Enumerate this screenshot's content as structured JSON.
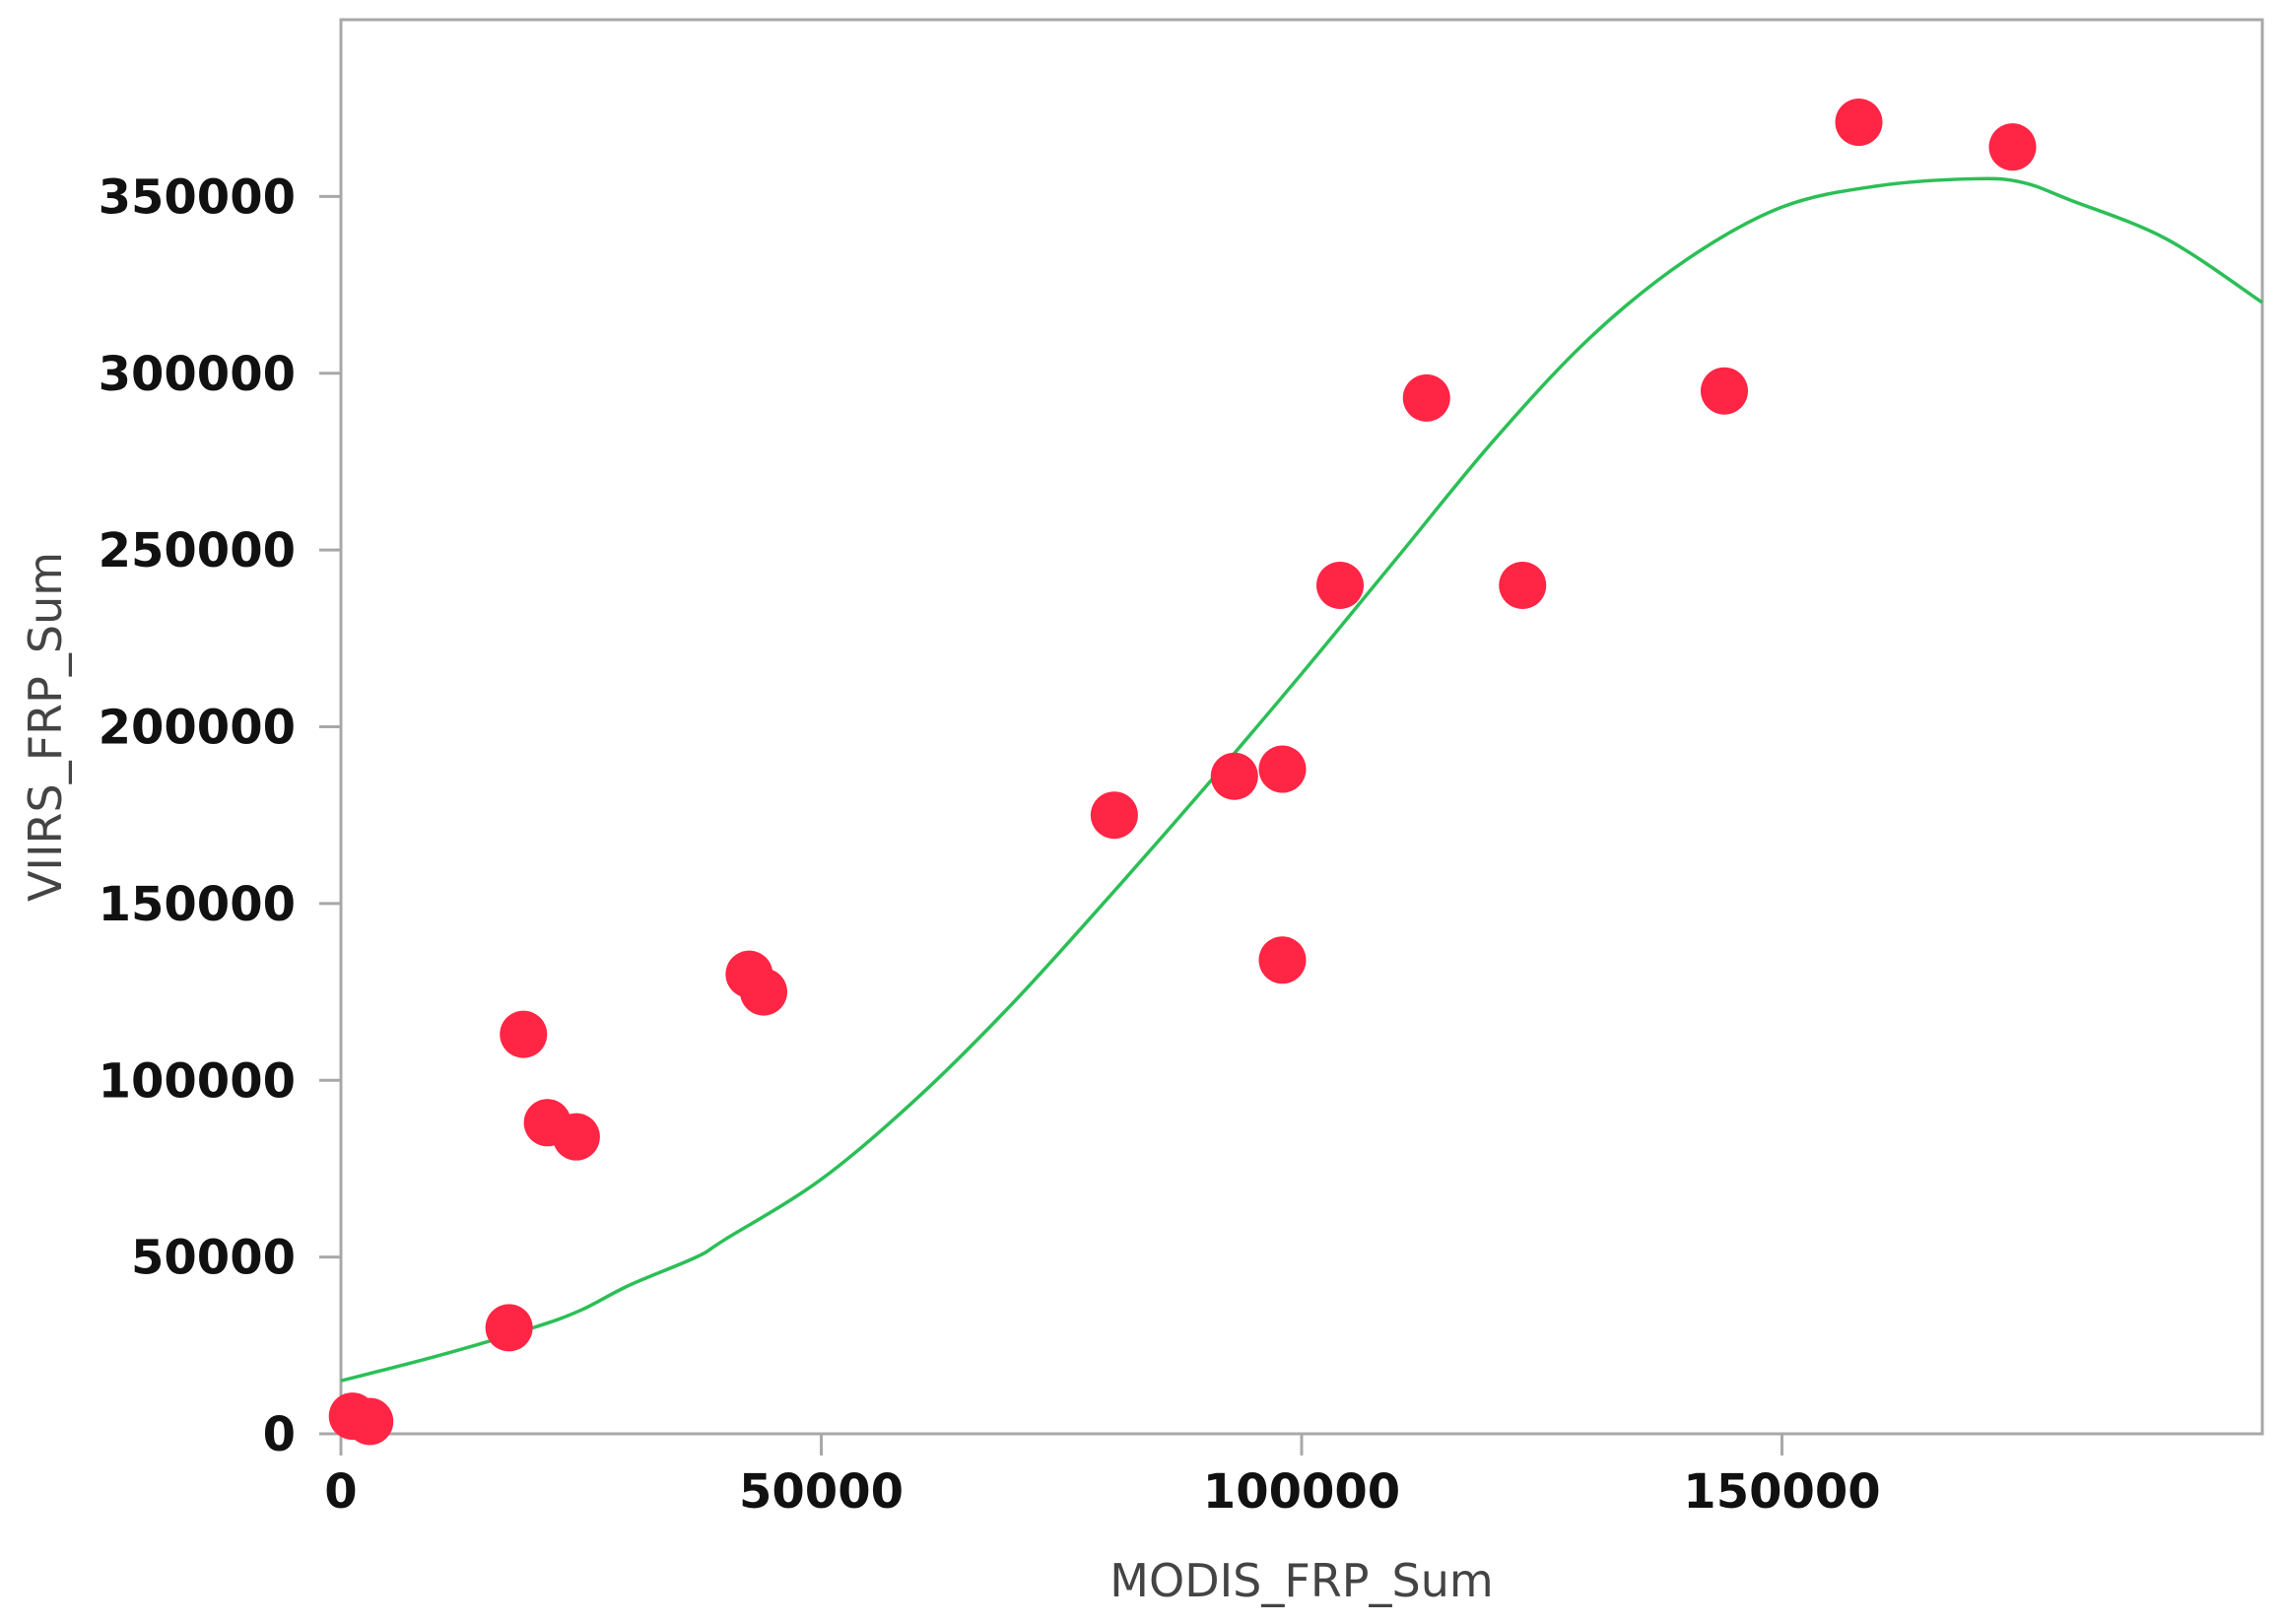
{
  "chart_data": {
    "type": "scatter",
    "xlabel": "MODIS_FRP_Sum",
    "ylabel": "VIIRS_FRP_Sum",
    "xlim": [
      0,
      200000
    ],
    "ylim": [
      0,
      400000
    ],
    "x_ticks": [
      0,
      50000,
      100000,
      150000
    ],
    "x_tick_labels": [
      "0",
      "50000",
      "100000",
      "150000"
    ],
    "y_ticks": [
      0,
      50000,
      100000,
      150000,
      200000,
      250000,
      300000,
      350000
    ],
    "y_tick_labels": [
      "0",
      "50000",
      "100000",
      "150000",
      "200000",
      "250000",
      "300000",
      "350000"
    ],
    "grid": false,
    "points": [
      {
        "x": 1200,
        "y": 5000
      },
      {
        "x": 3000,
        "y": 3500
      },
      {
        "x": 17500,
        "y": 30000
      },
      {
        "x": 19000,
        "y": 113000
      },
      {
        "x": 21500,
        "y": 88000
      },
      {
        "x": 24500,
        "y": 84000
      },
      {
        "x": 42500,
        "y": 130000
      },
      {
        "x": 44000,
        "y": 125000
      },
      {
        "x": 80500,
        "y": 175000
      },
      {
        "x": 93000,
        "y": 186000
      },
      {
        "x": 98000,
        "y": 188000
      },
      {
        "x": 98000,
        "y": 134000
      },
      {
        "x": 104000,
        "y": 240000
      },
      {
        "x": 113000,
        "y": 293000
      },
      {
        "x": 123000,
        "y": 240000
      },
      {
        "x": 144000,
        "y": 295000
      },
      {
        "x": 158000,
        "y": 371000
      },
      {
        "x": 174000,
        "y": 364000
      }
    ],
    "fit_curve": {
      "x": [
        0,
        10000,
        20000,
        25000,
        30000,
        37000,
        40000,
        50000,
        60000,
        70000,
        80000,
        90000,
        100000,
        110000,
        120000,
        130000,
        140000,
        150000,
        160000,
        170000,
        175000,
        180000,
        190000,
        200000
      ],
      "y": [
        15000,
        22000,
        30000,
        35000,
        42000,
        50000,
        55000,
        72000,
        95000,
        122000,
        152000,
        183000,
        215000,
        248000,
        281000,
        310000,
        332000,
        347000,
        353000,
        355000,
        354000,
        349000,
        338000,
        320000
      ]
    },
    "colors": {
      "points": "#ff2545",
      "fit_line": "#2bbf56",
      "frame": "#a8a8a8",
      "tick_text": "#111111",
      "axis_title_text": "#444444"
    }
  }
}
